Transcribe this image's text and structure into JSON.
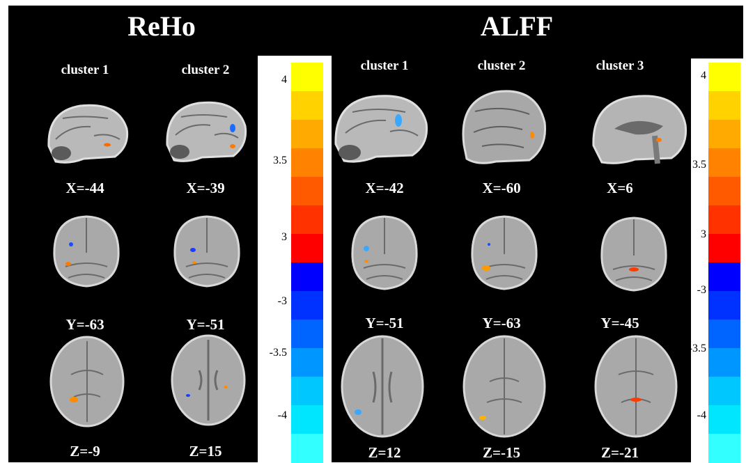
{
  "titles": {
    "left": "ReHo",
    "right": "ALFF"
  },
  "reho": {
    "columns": [
      {
        "label": "cluster 1",
        "sagittal": "X=-44",
        "coronal": "Y=-63",
        "axial": "Z=-9"
      },
      {
        "label": "cluster 2",
        "sagittal": "X=-39",
        "coronal": "Y=-51",
        "axial": "Z=15"
      }
    ]
  },
  "alff": {
    "columns": [
      {
        "label": "cluster 1",
        "sagittal": "X=-42",
        "coronal": "Y=-51",
        "axial": "Z=12"
      },
      {
        "label": "cluster 2",
        "sagittal": "X=-60",
        "coronal": "Y=-63",
        "axial": "Z=-15"
      },
      {
        "label": "cluster 3",
        "sagittal": "X=6",
        "coronal": "Y=-45",
        "axial": "Z=-21"
      }
    ]
  },
  "colorbar": {
    "ticks": [
      "4",
      "3.5",
      "3",
      "-3",
      "-3.5",
      "-4"
    ],
    "colors": [
      "#ffff00",
      "#ffd200",
      "#ffaa00",
      "#ff8200",
      "#ff5a00",
      "#ff3200",
      "#ff0000",
      "#0000ff",
      "#0032ff",
      "#0064ff",
      "#0096ff",
      "#00c8ff",
      "#00e6ff",
      "#32ffff"
    ]
  }
}
